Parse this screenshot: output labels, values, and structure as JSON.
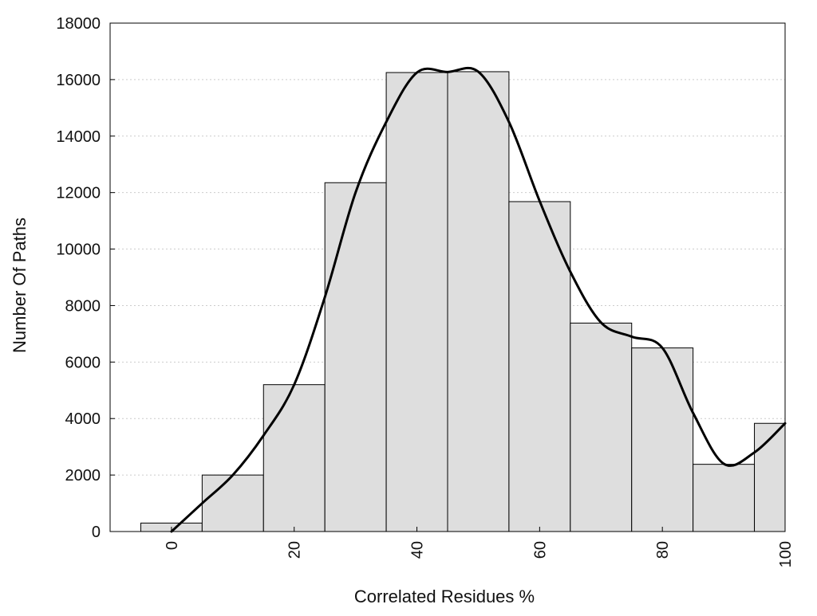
{
  "chart_data": {
    "type": "bar",
    "title": "",
    "xlabel": "Correlated Residues %",
    "ylabel": "Number Of Paths",
    "xlim": [
      -10,
      100
    ],
    "ylim": [
      0,
      18000
    ],
    "x_ticks": [
      0,
      20,
      40,
      60,
      80,
      100
    ],
    "x_tick_labels": [
      "0",
      "20",
      "40",
      "60",
      "80",
      "100"
    ],
    "y_ticks": [
      0,
      2000,
      4000,
      6000,
      8000,
      10000,
      12000,
      14000,
      16000,
      18000
    ],
    "y_tick_labels": [
      "0",
      "2000",
      "4000",
      "6000",
      "8000",
      "10000",
      "12000",
      "14000",
      "16000",
      "18000"
    ],
    "grid": true,
    "bins": [
      {
        "center": 0,
        "value": 300
      },
      {
        "center": 10,
        "value": 2000
      },
      {
        "center": 20,
        "value": 5200
      },
      {
        "center": 30,
        "value": 12350
      },
      {
        "center": 40,
        "value": 16250
      },
      {
        "center": 50,
        "value": 16280
      },
      {
        "center": 60,
        "value": 11680
      },
      {
        "center": 70,
        "value": 7380
      },
      {
        "center": 80,
        "value": 6500
      },
      {
        "center": 90,
        "value": 2380
      },
      {
        "center": 100,
        "value": 3830
      }
    ],
    "bin_width": 10,
    "curve": [
      {
        "x": 0,
        "y": 0
      },
      {
        "x": 5,
        "y": 1000
      },
      {
        "x": 10,
        "y": 2000
      },
      {
        "x": 15,
        "y": 3400
      },
      {
        "x": 20,
        "y": 5200
      },
      {
        "x": 25,
        "y": 8300
      },
      {
        "x": 30,
        "y": 12000
      },
      {
        "x": 35,
        "y": 14500
      },
      {
        "x": 40,
        "y": 16250
      },
      {
        "x": 45,
        "y": 16270
      },
      {
        "x": 50,
        "y": 16280
      },
      {
        "x": 55,
        "y": 14500
      },
      {
        "x": 60,
        "y": 11700
      },
      {
        "x": 65,
        "y": 9200
      },
      {
        "x": 70,
        "y": 7400
      },
      {
        "x": 75,
        "y": 6900
      },
      {
        "x": 80,
        "y": 6500
      },
      {
        "x": 85,
        "y": 4200
      },
      {
        "x": 90,
        "y": 2400
      },
      {
        "x": 95,
        "y": 2800
      },
      {
        "x": 100,
        "y": 3830
      }
    ],
    "bar_color": "#dedede",
    "bar_edge_color": "#000000",
    "curve_color": "#000000",
    "grid_color": "#cccccc"
  }
}
